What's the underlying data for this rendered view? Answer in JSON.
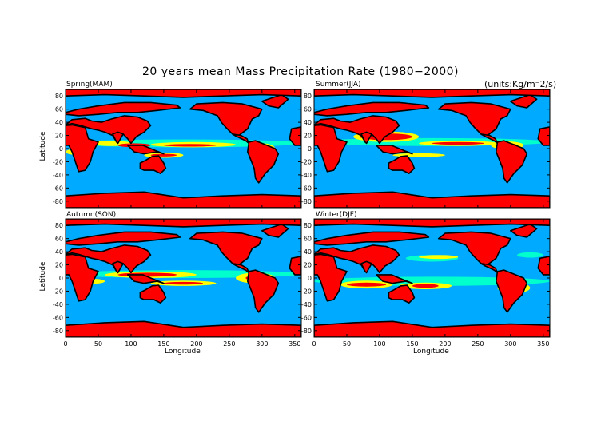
{
  "figure": {
    "title": "20 years mean Mass Precipitation Rate (1980−2000)",
    "units": "(units:Kg/m⁻2/s)"
  },
  "colors": {
    "ocean_background": "#00aaff",
    "low": "#00ffcc",
    "mid": "#ffff00",
    "high": "#ff0000",
    "contour": "#000000"
  },
  "chart_data": [
    {
      "type": "heatmap",
      "panel": "spring",
      "title": "Spring(MAM)",
      "xlabel": "",
      "ylabel": "Latitude",
      "xlim": [
        0,
        360
      ],
      "ylim": [
        -90,
        90
      ],
      "xticks": [
        0,
        50,
        100,
        150,
        200,
        250,
        300,
        350
      ],
      "yticks": [
        -80,
        -60,
        -40,
        -20,
        0,
        20,
        40,
        60,
        80
      ],
      "show_xticklabels": false,
      "show_yticklabels": true
    },
    {
      "type": "heatmap",
      "panel": "summer",
      "title": "Summer(JJA)",
      "xlabel": "",
      "ylabel": "",
      "xlim": [
        0,
        360
      ],
      "ylim": [
        -90,
        90
      ],
      "xticks": [
        0,
        50,
        100,
        150,
        200,
        250,
        300,
        350
      ],
      "yticks": [
        -80,
        -60,
        -40,
        -20,
        0,
        20,
        40,
        60,
        80
      ],
      "show_xticklabels": false,
      "show_yticklabels": true
    },
    {
      "type": "heatmap",
      "panel": "autumn",
      "title": "Autumn(SON)",
      "xlabel": "Longitude",
      "ylabel": "Latitude",
      "xlim": [
        0,
        360
      ],
      "ylim": [
        -90,
        90
      ],
      "xticks": [
        0,
        50,
        100,
        150,
        200,
        250,
        300,
        350
      ],
      "yticks": [
        -80,
        -60,
        -40,
        -20,
        0,
        20,
        40,
        60,
        80
      ],
      "show_xticklabels": true,
      "show_yticklabels": true
    },
    {
      "type": "heatmap",
      "panel": "winter",
      "title": "Winter(DJF)",
      "xlabel": "Longitude",
      "ylabel": "",
      "xlim": [
        0,
        360
      ],
      "ylim": [
        -90,
        90
      ],
      "xticks": [
        0,
        50,
        100,
        150,
        200,
        250,
        300,
        350
      ],
      "yticks": [
        -80,
        -60,
        -40,
        -20,
        0,
        20,
        40,
        60,
        80
      ],
      "show_xticklabels": true,
      "show_yticklabels": true
    }
  ]
}
